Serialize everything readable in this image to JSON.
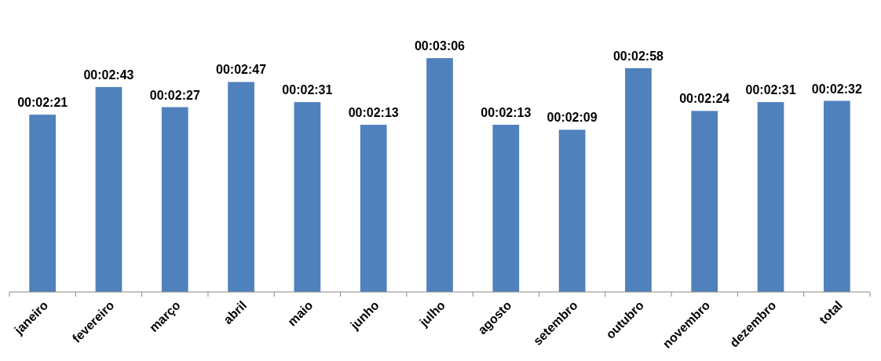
{
  "chart_data": {
    "type": "bar",
    "categories": [
      "janeiro",
      "fevereiro",
      "março",
      "abril",
      "maio",
      "junho",
      "julho",
      "agosto",
      "setembro",
      "outubro",
      "novembro",
      "dezembro",
      "total"
    ],
    "values": [
      141,
      163,
      147,
      167,
      151,
      133,
      186,
      133,
      129,
      178,
      144,
      151,
      152
    ],
    "value_labels": [
      "00:02:21",
      "00:02:43",
      "00:02:27",
      "00:02:47",
      "00:02:31",
      "00:02:13",
      "00:03:06",
      "00:02:13",
      "00:02:09",
      "00:02:58",
      "00:02:24",
      "00:02:31",
      "00:02:32"
    ],
    "color": "#4f81bd",
    "tick_labels": "x"
  }
}
